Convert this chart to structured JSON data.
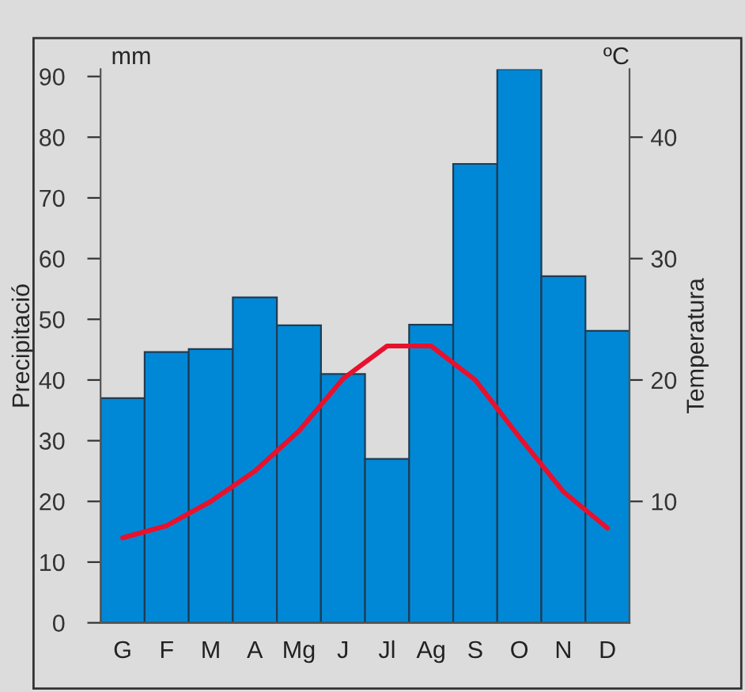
{
  "chart_data": {
    "type": "bar",
    "ylabel": "Precipitació",
    "y2label": "Temperatura",
    "annotations": [
      "mm",
      "ºC"
    ],
    "categories": [
      "G",
      "F",
      "M",
      "A",
      "Mg",
      "J",
      "Jl",
      "Ag",
      "S",
      "O",
      "N",
      "D"
    ],
    "series": [
      {
        "color": "#0088d6",
        "values": [
          37,
          44.6,
          45.1,
          53.6,
          49,
          41,
          27,
          49.1,
          75.6,
          91.2,
          57.1,
          48.1
        ]
      },
      {
        "type": "line",
        "axis": "y2",
        "color": "#e8112d",
        "values": [
          7,
          8,
          10,
          12.5,
          15.8,
          20.1,
          22.8,
          22.8,
          20,
          15.3,
          10.8,
          7.8
        ]
      }
    ],
    "ylim": [
      0,
      91.2
    ],
    "yticks": [
      0,
      10,
      20,
      30,
      40,
      50,
      60,
      70,
      80,
      90
    ],
    "y2lim": [
      0,
      45.6
    ],
    "y2ticks": [
      10,
      20,
      30,
      40
    ],
    "grid": false,
    "marker": "none",
    "line_style": "solid"
  }
}
